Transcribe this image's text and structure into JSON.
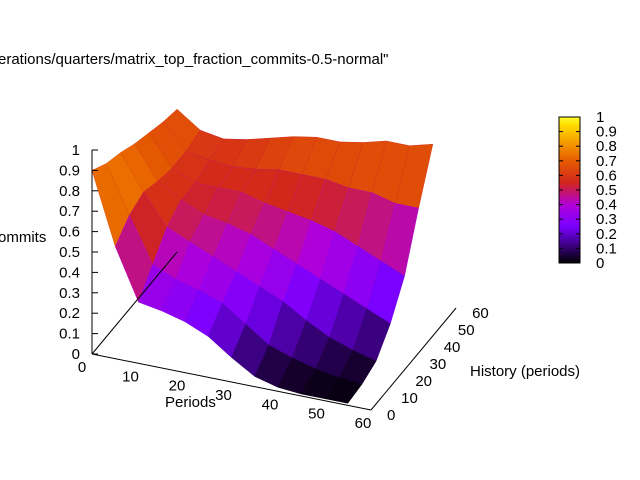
{
  "chart_data": {
    "type": "heatmap",
    "title": "erations/quarters/matrix_top_fraction_commits-0.5-normal\"",
    "xlabel": "Periods",
    "ylabel": "History (periods)",
    "zlabel": "ommits",
    "xlim": [
      0,
      60
    ],
    "ylim": [
      0,
      60
    ],
    "zlim": [
      0,
      1
    ],
    "x_ticks": [
      "0",
      "10",
      "20",
      "30",
      "40",
      "50",
      "60"
    ],
    "y_ticks": [
      "0",
      "10",
      "20",
      "30",
      "40",
      "50",
      "60"
    ],
    "z_ticks": [
      "0",
      "0.1",
      "0.2",
      "0.3",
      "0.4",
      "0.5",
      "0.6",
      "0.7",
      "0.8",
      "0.9",
      "1"
    ],
    "colorbar_ticks": [
      "0",
      "0.1",
      "0.2",
      "0.3",
      "0.4",
      "0.5",
      "0.6",
      "0.7",
      "0.8",
      "0.9",
      "1"
    ],
    "colormap": [
      "#000000",
      "#3b0080",
      "#7a00ff",
      "#b200d8",
      "#d1261c",
      "#e65c00",
      "#f7a800",
      "#ffe000",
      "#ffff30"
    ],
    "surface_estimate": {
      "x": [
        0,
        5,
        10,
        15,
        20,
        25,
        30,
        35,
        40,
        45,
        50,
        55
      ],
      "y": [
        0,
        10,
        20,
        30,
        40,
        50,
        60
      ],
      "z": [
        [
          0.9,
          0.85,
          0.82,
          0.78,
          0.75,
          0.72,
          0.7
        ],
        [
          0.55,
          0.62,
          0.65,
          0.62,
          0.6,
          0.6,
          0.62
        ],
        [
          0.3,
          0.4,
          0.5,
          0.55,
          0.55,
          0.58,
          0.6
        ],
        [
          0.28,
          0.35,
          0.45,
          0.5,
          0.55,
          0.57,
          0.62
        ],
        [
          0.25,
          0.32,
          0.4,
          0.48,
          0.55,
          0.58,
          0.65
        ],
        [
          0.2,
          0.28,
          0.35,
          0.45,
          0.52,
          0.6,
          0.68
        ],
        [
          0.12,
          0.2,
          0.3,
          0.4,
          0.5,
          0.6,
          0.7
        ],
        [
          0.05,
          0.12,
          0.25,
          0.35,
          0.48,
          0.6,
          0.7
        ],
        [
          0.02,
          0.08,
          0.18,
          0.3,
          0.45,
          0.58,
          0.72
        ],
        [
          0.01,
          0.05,
          0.12,
          0.25,
          0.4,
          0.58,
          0.75
        ],
        [
          0.01,
          0.03,
          0.08,
          0.2,
          0.35,
          0.55,
          0.75
        ],
        [
          0.01,
          0.02,
          0.05,
          0.15,
          0.3,
          0.55,
          0.78
        ]
      ]
    }
  }
}
